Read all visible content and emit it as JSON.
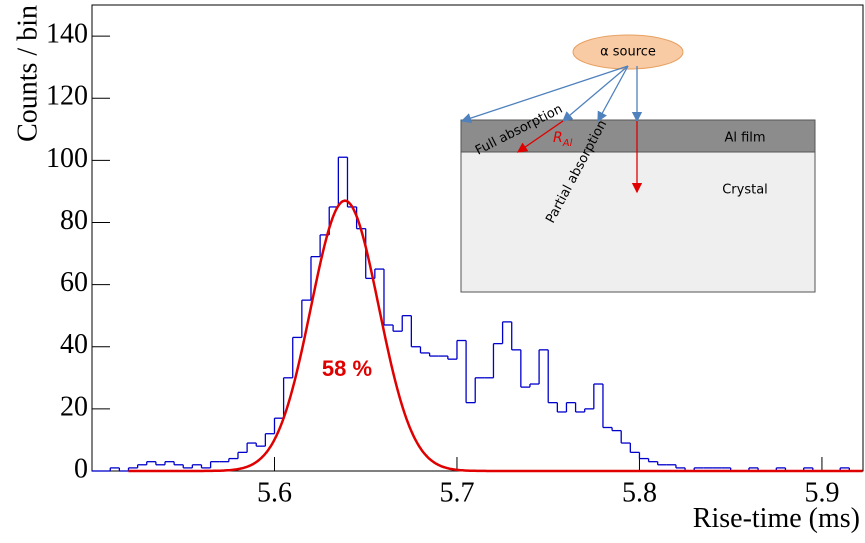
{
  "chart_data": {
    "type": "histogram",
    "x_label": "Rise-time (ms)",
    "y_label": "Counts / bin",
    "bins": [
      5.5,
      5.505,
      5.51,
      5.515,
      5.52,
      5.525,
      5.53,
      5.535,
      5.54,
      5.545,
      5.55,
      5.555,
      5.56,
      5.565,
      5.57,
      5.575,
      5.58,
      5.585,
      5.59,
      5.595,
      5.6,
      5.605,
      5.61,
      5.615,
      5.62,
      5.625,
      5.63,
      5.635,
      5.64,
      5.645,
      5.65,
      5.655,
      5.66,
      5.665,
      5.67,
      5.675,
      5.68,
      5.685,
      5.69,
      5.695,
      5.7,
      5.705,
      5.71,
      5.715,
      5.72,
      5.725,
      5.73,
      5.735,
      5.74,
      5.745,
      5.75,
      5.755,
      5.76,
      5.765,
      5.77,
      5.775,
      5.78,
      5.785,
      5.79,
      5.795,
      5.8,
      5.805,
      5.81,
      5.815,
      5.82,
      5.825,
      5.83,
      5.835,
      5.84,
      5.845,
      5.85,
      5.855,
      5.86,
      5.865,
      5.87,
      5.875,
      5.88,
      5.885,
      5.89,
      5.895,
      5.9,
      5.905,
      5.91,
      5.915,
      5.92
    ],
    "values": [
      0,
      0,
      1,
      0,
      1,
      2,
      3,
      2,
      3,
      2,
      1,
      2,
      1,
      3,
      3,
      4,
      6,
      9,
      8,
      12,
      17,
      30,
      43,
      55,
      69,
      76,
      85,
      101,
      85,
      78,
      62,
      65,
      47,
      45,
      50,
      40,
      38,
      37,
      37,
      36,
      42,
      22,
      30,
      30,
      41,
      48,
      39,
      27,
      28,
      39,
      22,
      19,
      22,
      19,
      20,
      28,
      14,
      13,
      9,
      6,
      4,
      3,
      2,
      2,
      1,
      0,
      1,
      1,
      1,
      1,
      0,
      0,
      1,
      0,
      0,
      1,
      0,
      0,
      1,
      0,
      0,
      0,
      1,
      0
    ],
    "color": "#0000cc",
    "fit": {
      "amplitude": 87,
      "mean": 5.6386,
      "sigma": 0.0186,
      "color": "#e00000"
    },
    "annotation": "58 %",
    "xlim": [
      5.5,
      5.9225
    ],
    "ylim": [
      0,
      150
    ],
    "xticks": [
      5.6,
      5.7,
      5.8,
      5.9
    ],
    "yticks": [
      0,
      20,
      40,
      60,
      80,
      100,
      120,
      140
    ]
  },
  "inset": {
    "source": "α source",
    "film": "Al film",
    "crystal": "Crystal",
    "full": "Full absorption",
    "partial": "Partial absorption",
    "range_symbol": "R",
    "range_subscript": "Al"
  }
}
